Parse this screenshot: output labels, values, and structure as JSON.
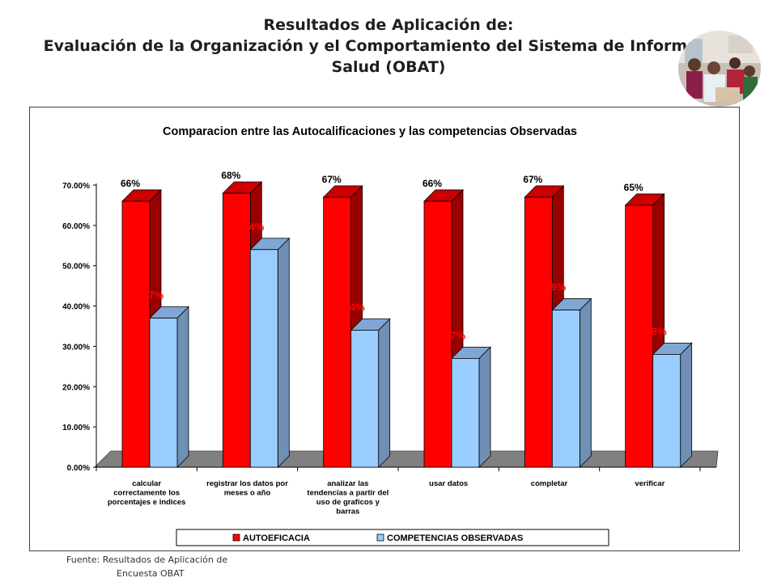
{
  "slide": {
    "title_line1": "Resultados de Aplicación de:",
    "title_line2": "Evaluación de la Organización y el Comportamiento del Sistema de Información",
    "title_line3": "Salud (OBAT)",
    "source_line1": "Fuente: Resultados de Aplicación de",
    "source_line2": "Encuesta OBAT"
  },
  "chart_data": {
    "type": "bar",
    "title": "Comparacion entre las Autocalificaciones y las competencias Observadas",
    "categories": [
      "calcular correctamente los porcentajes e indices",
      "registrar los datos por meses o año",
      "analizar las tendencias a partir del uso de graficos y barras",
      "usar datos",
      "completar",
      "verificar"
    ],
    "category_lines": [
      [
        "calcular",
        "correctamente los",
        "porcentajes e indices"
      ],
      [
        "registrar los datos por",
        "meses o año"
      ],
      [
        "analizar las",
        "tendencias a partir del",
        "uso de graficos y",
        "barras"
      ],
      [
        "usar datos"
      ],
      [
        "completar"
      ],
      [
        "verificar"
      ]
    ],
    "series": [
      {
        "name": "AUTOEFICACIA",
        "values": [
          66,
          68,
          67,
          66,
          67,
          65
        ],
        "labels": [
          "66%",
          "68%",
          "67%",
          "66%",
          "67%",
          "65%"
        ],
        "color": "#ff0000",
        "label_color": "#000000"
      },
      {
        "name": "COMPETENCIAS OBSERVADAS",
        "values": [
          37,
          54,
          34,
          27,
          39,
          28
        ],
        "labels": [
          "37%",
          "54%",
          "34%",
          "27%",
          "39%",
          "28%"
        ],
        "color": "#99ccff",
        "label_color": "#ff0000"
      }
    ],
    "yticks": [
      "0.00%",
      "10.00%",
      "20.00%",
      "30.00%",
      "40.00%",
      "50.00%",
      "60.00%",
      "70.00%"
    ],
    "ylim": [
      0,
      70
    ],
    "legend_position": "bottom",
    "grid": false,
    "floor_color": "#808080"
  }
}
